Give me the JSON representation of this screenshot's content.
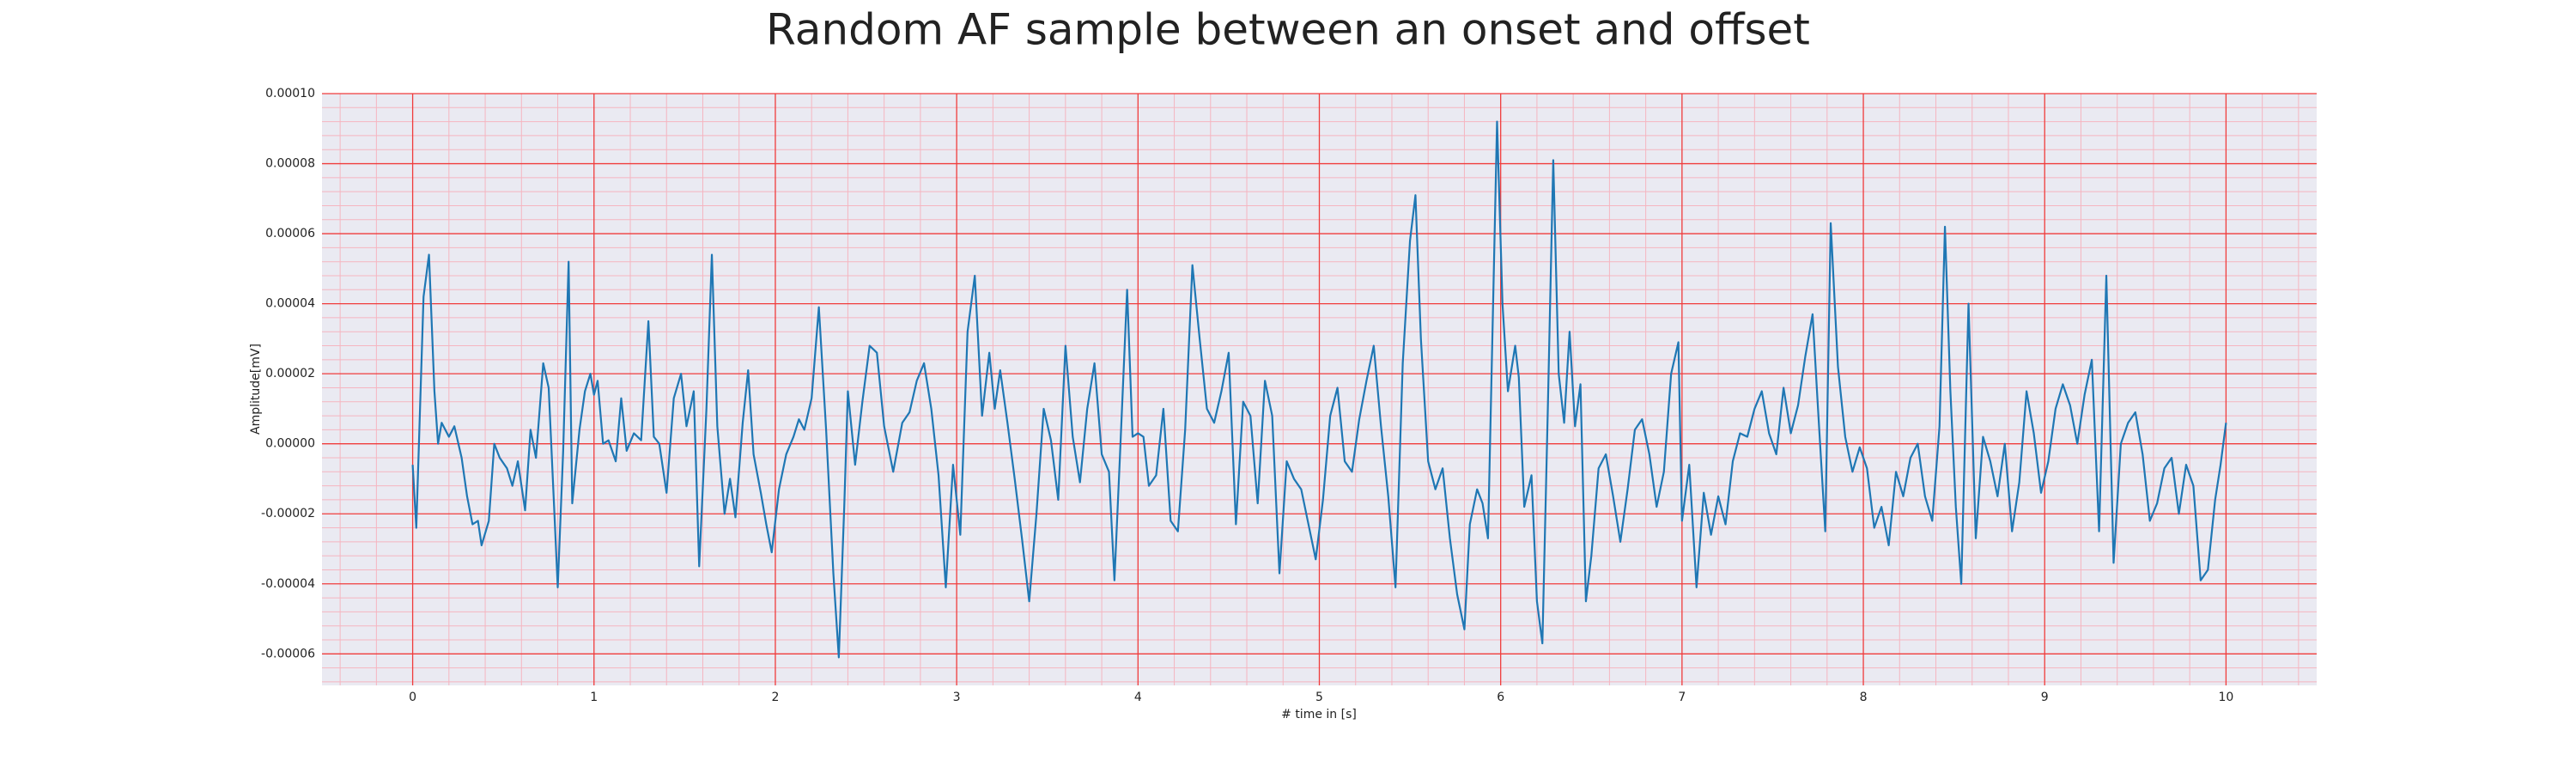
{
  "chart_data": {
    "type": "line",
    "title": "Random AF sample between an onset and offset",
    "xlabel": "# time in [s]",
    "ylabel": "Amplitude[mV]",
    "color": "#1f77b4",
    "grid": true,
    "xlim": [
      -0.5,
      10.5
    ],
    "xticks": [
      0,
      1,
      2,
      3,
      4,
      5,
      6,
      7,
      8,
      9,
      10
    ],
    "ylim": [
      -6.9e-05,
      0.0001
    ],
    "yticks": [
      {
        "value": -6e-05,
        "label": "-0.00006"
      },
      {
        "value": -4e-05,
        "label": "-0.00004"
      },
      {
        "value": -2e-05,
        "label": "-0.00002"
      },
      {
        "value": 0,
        "label": "0.00000"
      },
      {
        "value": 2e-05,
        "label": "0.00002"
      },
      {
        "value": 4e-05,
        "label": "0.00004"
      },
      {
        "value": 6e-05,
        "label": "0.00006"
      },
      {
        "value": 8e-05,
        "label": "0.00008"
      },
      {
        "value": 0.0001,
        "label": "0.00010"
      }
    ],
    "x": [
      0,
      0.02,
      0.06,
      0.09,
      0.12,
      0.14,
      0.16,
      0.2,
      0.23,
      0.27,
      0.3,
      0.33,
      0.36,
      0.38,
      0.42,
      0.45,
      0.48,
      0.52,
      0.55,
      0.58,
      0.62,
      0.65,
      0.68,
      0.72,
      0.75,
      0.78,
      0.8,
      0.83,
      0.86,
      0.88,
      0.92,
      0.95,
      0.98,
      1.0,
      1.02,
      1.05,
      1.08,
      1.12,
      1.15,
      1.18,
      1.22,
      1.26,
      1.3,
      1.33,
      1.36,
      1.4,
      1.44,
      1.48,
      1.51,
      1.55,
      1.58,
      1.62,
      1.65,
      1.68,
      1.72,
      1.75,
      1.78,
      1.82,
      1.85,
      1.88,
      1.92,
      1.95,
      1.98,
      2.02,
      2.06,
      2.1,
      2.13,
      2.16,
      2.2,
      2.24,
      2.28,
      2.32,
      2.35,
      2.38,
      2.4,
      2.44,
      2.48,
      2.52,
      2.56,
      2.6,
      2.65,
      2.7,
      2.74,
      2.78,
      2.82,
      2.86,
      2.9,
      2.94,
      2.98,
      3.02,
      3.06,
      3.1,
      3.14,
      3.18,
      3.21,
      3.24,
      3.28,
      3.32,
      3.36,
      3.4,
      3.44,
      3.48,
      3.52,
      3.56,
      3.6,
      3.64,
      3.68,
      3.72,
      3.76,
      3.8,
      3.84,
      3.87,
      3.9,
      3.94,
      3.97,
      4.0,
      4.03,
      4.06,
      4.1,
      4.14,
      4.18,
      4.22,
      4.26,
      4.3,
      4.34,
      4.38,
      4.42,
      4.46,
      4.5,
      4.54,
      4.58,
      4.62,
      4.66,
      4.7,
      4.74,
      4.78,
      4.82,
      4.86,
      4.9,
      4.94,
      4.98,
      5.02,
      5.06,
      5.1,
      5.14,
      5.18,
      5.22,
      5.26,
      5.3,
      5.34,
      5.38,
      5.42,
      5.46,
      5.5,
      5.53,
      5.56,
      5.6,
      5.64,
      5.68,
      5.72,
      5.76,
      5.8,
      5.83,
      5.87,
      5.9,
      5.93,
      5.96,
      5.98,
      6.01,
      6.04,
      6.08,
      6.1,
      6.13,
      6.17,
      6.2,
      6.23,
      6.26,
      6.29,
      6.32,
      6.35,
      6.38,
      6.41,
      6.44,
      6.47,
      6.5,
      6.54,
      6.58,
      6.62,
      6.66,
      6.7,
      6.74,
      6.78,
      6.82,
      6.86,
      6.9,
      6.94,
      6.98,
      7.0,
      7.04,
      7.08,
      7.12,
      7.16,
      7.2,
      7.24,
      7.28,
      7.32,
      7.36,
      7.4,
      7.44,
      7.48,
      7.52,
      7.56,
      7.6,
      7.64,
      7.68,
      7.72,
      7.75,
      7.79,
      7.82,
      7.86,
      7.9,
      7.94,
      7.98,
      8.02,
      8.06,
      8.1,
      8.14,
      8.18,
      8.22,
      8.26,
      8.3,
      8.34,
      8.38,
      8.42,
      8.45,
      8.48,
      8.51,
      8.54,
      8.58,
      8.62,
      8.66,
      8.7,
      8.74,
      8.78,
      8.82,
      8.86,
      8.9,
      8.94,
      8.98,
      9.02,
      9.06,
      9.1,
      9.14,
      9.18,
      9.22,
      9.26,
      9.3,
      9.34,
      9.38,
      9.42,
      9.46,
      9.5,
      9.54,
      9.58,
      9.62,
      9.66,
      9.7,
      9.74,
      9.78,
      9.82,
      9.86,
      9.9,
      9.94,
      9.97,
      10.0
    ],
    "values": [
      -6e-06,
      -2.4e-05,
      4.2e-05,
      5.4e-05,
      1.5e-05,
      0,
      6e-06,
      2e-06,
      5e-06,
      -4e-06,
      -1.5e-05,
      -2.3e-05,
      -2.2e-05,
      -2.9e-05,
      -2.2e-05,
      0,
      -4e-06,
      -7e-06,
      -1.2e-05,
      -5e-06,
      -1.9e-05,
      4e-06,
      -4e-06,
      2.3e-05,
      1.6e-05,
      -1.8e-05,
      -4.1e-05,
      -2e-06,
      5.2e-05,
      -1.7e-05,
      4e-06,
      1.5e-05,
      2e-05,
      1.4e-05,
      1.8e-05,
      0,
      1e-06,
      -5e-06,
      1.3e-05,
      -2e-06,
      3e-06,
      1e-06,
      3.5e-05,
      2e-06,
      0,
      -1.4e-05,
      1.3e-05,
      2e-05,
      5e-06,
      1.5e-05,
      -3.5e-05,
      1e-05,
      5.4e-05,
      5e-06,
      -2e-05,
      -1e-05,
      -2.1e-05,
      6e-06,
      2.1e-05,
      -3e-06,
      -1.4e-05,
      -2.3e-05,
      -3.1e-05,
      -1.3e-05,
      -3e-06,
      2e-06,
      7e-06,
      4e-06,
      1.3e-05,
      3.9e-05,
      4e-06,
      -3.7e-05,
      -6.1e-05,
      -1.8e-05,
      1.5e-05,
      -6e-06,
      1.2e-05,
      2.8e-05,
      2.6e-05,
      5e-06,
      -8e-06,
      6e-06,
      9e-06,
      1.8e-05,
      2.3e-05,
      1e-05,
      -9e-06,
      -4.1e-05,
      -6e-06,
      -2.6e-05,
      3.2e-05,
      4.8e-05,
      8e-06,
      2.6e-05,
      1e-05,
      2.1e-05,
      6e-06,
      -1e-05,
      -2.7e-05,
      -4.5e-05,
      -2e-05,
      1e-05,
      1e-06,
      -1.6e-05,
      2.8e-05,
      2e-06,
      -1.1e-05,
      1e-05,
      2.3e-05,
      -3e-06,
      -8e-06,
      -3.9e-05,
      -4e-06,
      4.4e-05,
      2e-06,
      3e-06,
      2e-06,
      -1.2e-05,
      -9e-06,
      1e-05,
      -2.2e-05,
      -2.5e-05,
      4e-06,
      5.1e-05,
      3e-05,
      1e-05,
      6e-06,
      1.5e-05,
      2.6e-05,
      -2.3e-05,
      1.2e-05,
      8e-06,
      -1.7e-05,
      1.8e-05,
      8e-06,
      -3.7e-05,
      -5e-06,
      -1e-05,
      -1.3e-05,
      -2.3e-05,
      -3.3e-05,
      -1.6e-05,
      8e-06,
      1.6e-05,
      -5e-06,
      -8e-06,
      7e-06,
      1.8e-05,
      2.8e-05,
      5e-06,
      -1.5e-05,
      -4.1e-05,
      2.3e-05,
      5.8e-05,
      7.1e-05,
      3e-05,
      -5e-06,
      -1.3e-05,
      -7e-06,
      -2.7e-05,
      -4.3e-05,
      -5.3e-05,
      -2.3e-05,
      -1.3e-05,
      -1.7e-05,
      -2.7e-05,
      4.4e-05,
      9.2e-05,
      4e-05,
      1.5e-05,
      2.8e-05,
      1.9e-05,
      -1.8e-05,
      -9e-06,
      -4.5e-05,
      -5.7e-05,
      1e-05,
      8.1e-05,
      2e-05,
      6e-06,
      3.2e-05,
      5e-06,
      1.7e-05,
      -4.5e-05,
      -3.2e-05,
      -7e-06,
      -3e-06,
      -1.5e-05,
      -2.8e-05,
      -1.3e-05,
      4e-06,
      7e-06,
      -3e-06,
      -1.8e-05,
      -8e-06,
      2e-05,
      2.9e-05,
      -2.2e-05,
      -6e-06,
      -4.1e-05,
      -1.4e-05,
      -2.6e-05,
      -1.5e-05,
      -2.3e-05,
      -5e-06,
      3e-06,
      2e-06,
      1e-05,
      1.5e-05,
      3e-06,
      -3e-06,
      1.6e-05,
      3e-06,
      1.1e-05,
      2.5e-05,
      3.7e-05,
      1e-05,
      -2.5e-05,
      6.3e-05,
      2.2e-05,
      2e-06,
      -8e-06,
      -1e-06,
      -7e-06,
      -2.4e-05,
      -1.8e-05,
      -2.9e-05,
      -8e-06,
      -1.5e-05,
      -4e-06,
      0,
      -1.5e-05,
      -2.2e-05,
      5e-06,
      6.2e-05,
      1.5e-05,
      -1.8e-05,
      -4e-05,
      4e-05,
      -2.7e-05,
      2e-06,
      -5e-06,
      -1.5e-05,
      0,
      -2.5e-05,
      -1.1e-05,
      1.5e-05,
      3e-06,
      -1.4e-05,
      -5e-06,
      1e-05,
      1.7e-05,
      1.1e-05,
      0,
      1.4e-05,
      2.4e-05,
      -2.5e-05,
      4.8e-05,
      -3.4e-05,
      0,
      6e-06,
      9e-06,
      -3e-06,
      -2.2e-05,
      -1.7e-05,
      -7e-06,
      -4e-06,
      -2e-05,
      -6e-06,
      -1.2e-05,
      -3.9e-05,
      -3.6e-05,
      -1.6e-05,
      -6e-06,
      6e-06
    ]
  }
}
